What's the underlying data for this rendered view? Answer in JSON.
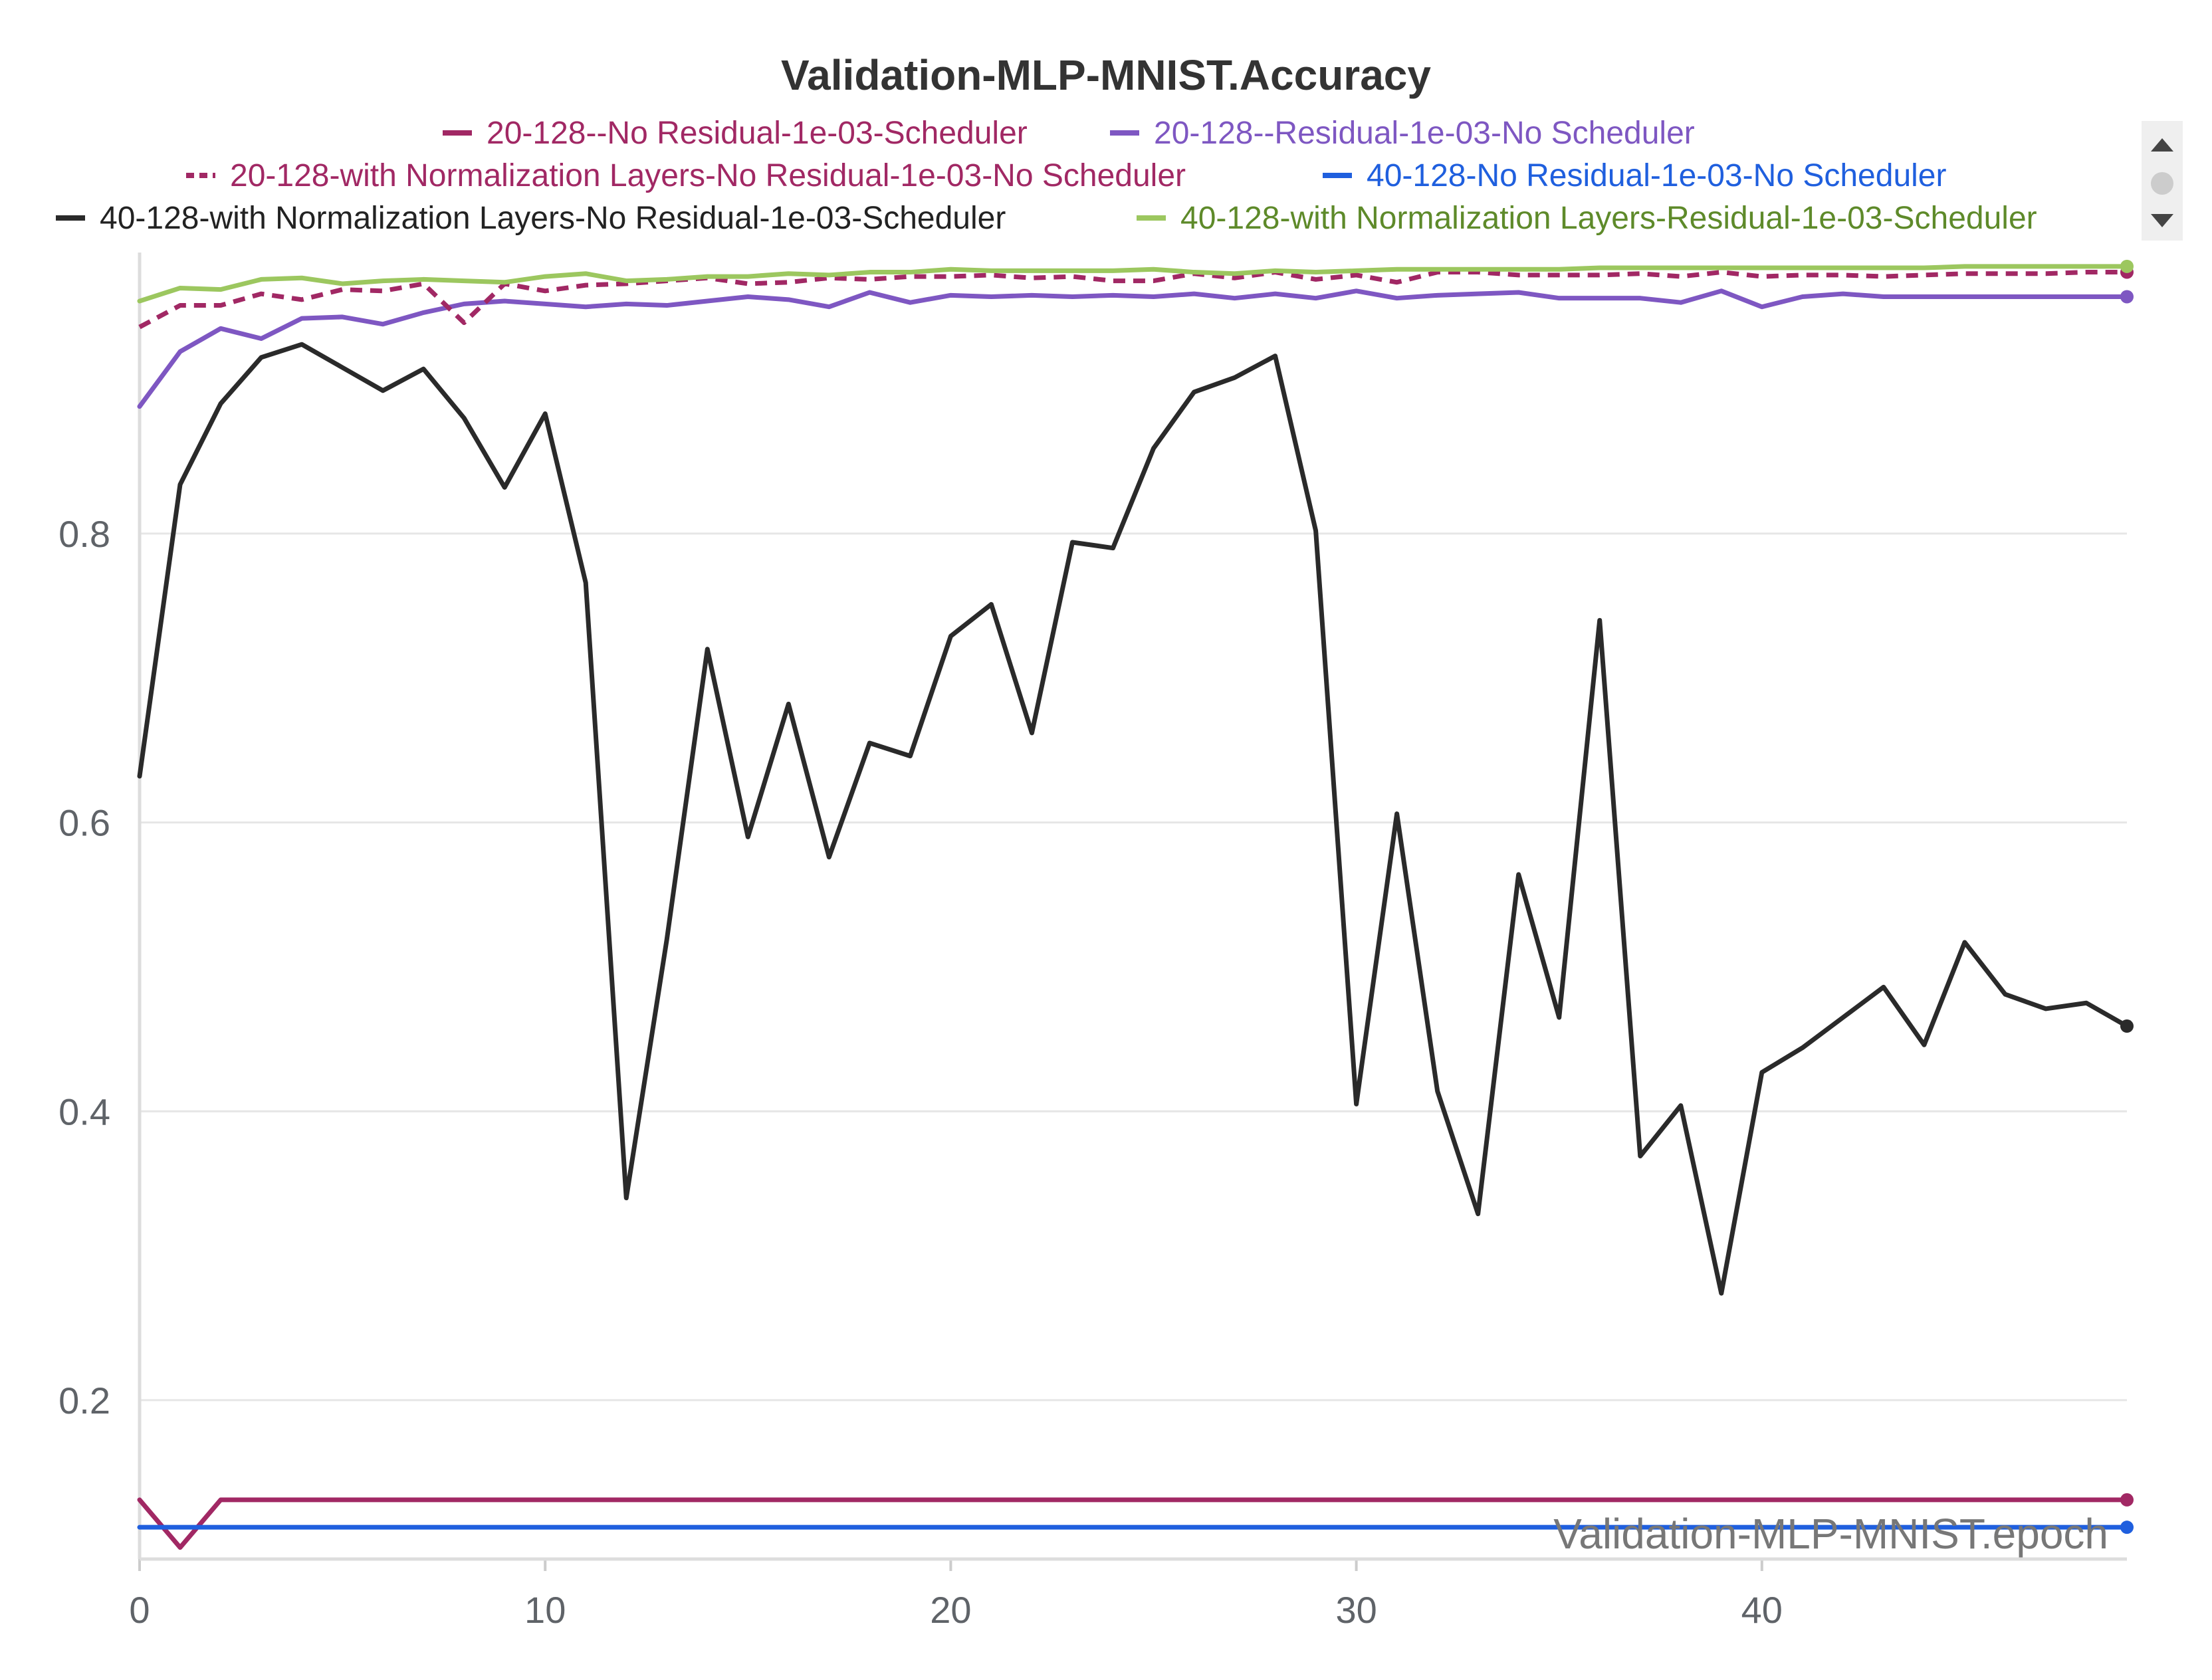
{
  "chart_data": {
    "type": "line",
    "title": "Validation-MLP-MNIST.Accuracy",
    "xlabel": "Validation-MLP-MNIST.epoch",
    "ylabel": "",
    "xlim": [
      0,
      49
    ],
    "ylim": [
      0.09,
      0.99
    ],
    "xticks": [
      0,
      10,
      20,
      30,
      40
    ],
    "yticks": [
      0.2,
      0.4,
      0.6,
      0.8
    ],
    "ytick_labels": [
      "0.2",
      "0.4",
      "0.6",
      "0.8"
    ],
    "grid": true,
    "legend_position": "top",
    "x": [
      0,
      1,
      2,
      3,
      4,
      5,
      6,
      7,
      8,
      9,
      10,
      11,
      12,
      13,
      14,
      15,
      16,
      17,
      18,
      19,
      20,
      21,
      22,
      23,
      24,
      25,
      26,
      27,
      28,
      29,
      30,
      31,
      32,
      33,
      34,
      35,
      36,
      37,
      38,
      39,
      40,
      41,
      42,
      43,
      44,
      45,
      46,
      47,
      48,
      49
    ],
    "series": [
      {
        "name": "20-128--No Residual-1e-03-Scheduler",
        "color": "#a12864",
        "text_color": "#a12864",
        "dash": false,
        "values": [
          0.131,
          0.098,
          0.131,
          0.131,
          0.131,
          0.131,
          0.131,
          0.131,
          0.131,
          0.131,
          0.131,
          0.131,
          0.131,
          0.131,
          0.131,
          0.131,
          0.131,
          0.131,
          0.131,
          0.131,
          0.131,
          0.131,
          0.131,
          0.131,
          0.131,
          0.131,
          0.131,
          0.131,
          0.131,
          0.131,
          0.131,
          0.131,
          0.131,
          0.131,
          0.131,
          0.131,
          0.131,
          0.131,
          0.131,
          0.131,
          0.131,
          0.131,
          0.131,
          0.131,
          0.131,
          0.131,
          0.131,
          0.131,
          0.131,
          0.131
        ]
      },
      {
        "name": "20-128--Residual-1e-03-No Scheduler",
        "color": "#7e57c2",
        "text_color": "#7e57c2",
        "dash": false,
        "values": [
          0.888,
          0.926,
          0.942,
          0.935,
          0.949,
          0.95,
          0.945,
          0.953,
          0.959,
          0.961,
          0.959,
          0.957,
          0.959,
          0.958,
          0.961,
          0.964,
          0.962,
          0.957,
          0.967,
          0.96,
          0.965,
          0.964,
          0.965,
          0.964,
          0.965,
          0.964,
          0.966,
          0.963,
          0.966,
          0.963,
          0.968,
          0.963,
          0.965,
          0.966,
          0.967,
          0.963,
          0.963,
          0.963,
          0.96,
          0.968,
          0.957,
          0.964,
          0.966,
          0.964,
          0.964,
          0.964,
          0.964,
          0.964,
          0.964,
          0.964
        ]
      },
      {
        "name": "20-128-with Normalization Layers-No Residual-1e-03-No Scheduler",
        "color": "#a12864",
        "text_color": "#a12864",
        "dash": true,
        "values": [
          0.943,
          0.958,
          0.958,
          0.966,
          0.962,
          0.969,
          0.968,
          0.973,
          0.946,
          0.973,
          0.968,
          0.972,
          0.973,
          0.975,
          0.977,
          0.973,
          0.974,
          0.977,
          0.976,
          0.978,
          0.978,
          0.979,
          0.977,
          0.978,
          0.975,
          0.975,
          0.98,
          0.977,
          0.981,
          0.976,
          0.979,
          0.974,
          0.981,
          0.981,
          0.979,
          0.979,
          0.979,
          0.98,
          0.978,
          0.981,
          0.978,
          0.979,
          0.979,
          0.978,
          0.979,
          0.98,
          0.98,
          0.98,
          0.981,
          0.981
        ]
      },
      {
        "name": "40-128-No Residual-1e-03-No Scheduler",
        "color": "#1f5fde",
        "text_color": "#1f5fde",
        "dash": false,
        "values": [
          0.112,
          0.112,
          0.112,
          0.112,
          0.112,
          0.112,
          0.112,
          0.112,
          0.112,
          0.112,
          0.112,
          0.112,
          0.112,
          0.112,
          0.112,
          0.112,
          0.112,
          0.112,
          0.112,
          0.112,
          0.112,
          0.112,
          0.112,
          0.112,
          0.112,
          0.112,
          0.112,
          0.112,
          0.112,
          0.112,
          0.112,
          0.112,
          0.112,
          0.112,
          0.112,
          0.112,
          0.112,
          0.112,
          0.112,
          0.112,
          0.112,
          0.112,
          0.112,
          0.112,
          0.112,
          0.112,
          0.112,
          0.112,
          0.112,
          0.112
        ]
      },
      {
        "name": "40-128-with Normalization Layers-No Residual-1e-03-Scheduler",
        "color": "#2a2a2a",
        "text_color": "#222222",
        "dash": false,
        "values": [
          0.632,
          0.834,
          0.89,
          0.922,
          0.931,
          0.915,
          0.899,
          0.914,
          0.88,
          0.832,
          0.883,
          0.766,
          0.34,
          0.519,
          0.72,
          0.59,
          0.682,
          0.576,
          0.655,
          0.646,
          0.729,
          0.751,
          0.662,
          0.794,
          0.79,
          0.859,
          0.898,
          0.908,
          0.923,
          0.802,
          0.405,
          0.606,
          0.414,
          0.329,
          0.564,
          0.465,
          0.74,
          0.369,
          0.404,
          0.274,
          0.427,
          0.444,
          0.465,
          0.486,
          0.446,
          0.517,
          0.481,
          0.471,
          0.475,
          0.459
        ]
      },
      {
        "name": "40-128-with Normalization Layers-Residual-1e-03-Scheduler",
        "color": "#9cc75f",
        "text_color": "#5e8a2a",
        "dash": false,
        "values": [
          0.961,
          0.97,
          0.969,
          0.976,
          0.977,
          0.973,
          0.975,
          0.976,
          0.975,
          0.974,
          0.978,
          0.98,
          0.975,
          0.976,
          0.978,
          0.978,
          0.98,
          0.979,
          0.981,
          0.981,
          0.983,
          0.982,
          0.982,
          0.982,
          0.982,
          0.983,
          0.981,
          0.98,
          0.982,
          0.981,
          0.982,
          0.983,
          0.983,
          0.983,
          0.983,
          0.983,
          0.984,
          0.984,
          0.984,
          0.984,
          0.984,
          0.984,
          0.984,
          0.984,
          0.984,
          0.985,
          0.985,
          0.985,
          0.985,
          0.985
        ]
      }
    ]
  }
}
